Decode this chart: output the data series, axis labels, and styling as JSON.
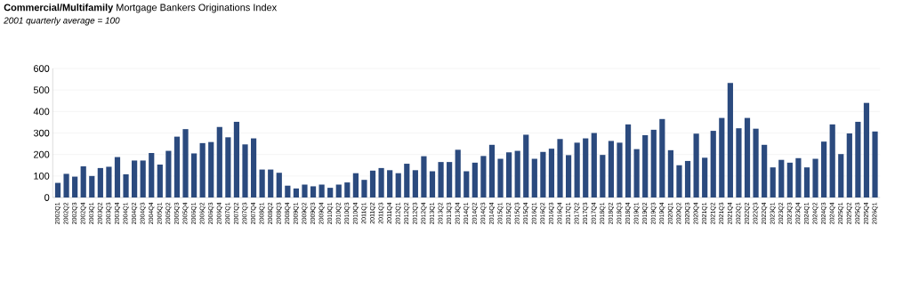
{
  "chart_data": {
    "type": "bar",
    "title": "**Commercial/Multifamily** Mortgage Bankers Originations Index",
    "subtitle": "2001 quarterly average = 100",
    "categories": [
      "2002Q1",
      "2002Q2",
      "2002Q3",
      "2002Q4",
      "2003Q1",
      "2003Q2",
      "2003Q3",
      "2003Q4",
      "2004Q1",
      "2004Q2",
      "2004Q3",
      "2004Q4",
      "2005Q1",
      "2005Q2",
      "2005Q3",
      "2005Q4",
      "2006Q1",
      "2006Q2",
      "2006Q3",
      "2006Q4",
      "2007Q1",
      "2007Q2",
      "2007Q3",
      "2007Q4",
      "2008Q1",
      "2008Q2",
      "2008Q3",
      "2008Q4",
      "2009Q1",
      "2009Q2",
      "2009Q3",
      "2009Q4",
      "2010Q1",
      "2010Q2",
      "2010Q3",
      "2010Q4",
      "2011Q1",
      "2011Q2",
      "2011Q3",
      "2011Q4",
      "2012Q1",
      "2012Q2",
      "2012Q3",
      "2012Q4",
      "2013Q1",
      "2013Q2",
      "2013Q3",
      "2013Q4",
      "2014Q1",
      "2014Q2",
      "2014Q3",
      "2014Q4",
      "2015Q1",
      "2015Q2",
      "2015Q3",
      "2015Q4",
      "2016Q1",
      "2016Q2",
      "2016Q3",
      "2016Q4",
      "2017Q1",
      "2017Q2",
      "2017Q3",
      "2017Q4",
      "2018Q1",
      "2018Q2",
      "2018Q3",
      "2018Q4",
      "2019Q1",
      "2019Q2",
      "2019Q3",
      "2019Q4",
      "2020Q1",
      "2020Q2",
      "2020Q3",
      "2020Q4",
      "2021Q1",
      "2021Q2",
      "2021Q3",
      "2021Q4",
      "2022Q1",
      "2022Q2",
      "2022Q3",
      "2022Q4",
      "2023Q1",
      "2023Q2",
      "2023Q3",
      "2023Q4",
      "2024Q1",
      "2024Q2",
      "2024Q3",
      "2024Q4",
      "2025Q1",
      "2025Q2",
      "2025Q3",
      "2025Q4",
      "2026Q1"
    ],
    "values": [
      68,
      110,
      97,
      145,
      100,
      137,
      143,
      188,
      108,
      172,
      172,
      207,
      153,
      217,
      283,
      318,
      205,
      253,
      258,
      328,
      280,
      352,
      247,
      275,
      130,
      130,
      115,
      55,
      42,
      60,
      52,
      60,
      45,
      60,
      70,
      113,
      82,
      125,
      137,
      127,
      113,
      157,
      127,
      192,
      122,
      165,
      165,
      222,
      122,
      162,
      193,
      245,
      180,
      210,
      217,
      292,
      180,
      212,
      227,
      272,
      197,
      255,
      275,
      300,
      198,
      263,
      255,
      340,
      225,
      290,
      315,
      365,
      220,
      150,
      170,
      297,
      185,
      310,
      370,
      533,
      322,
      370,
      320,
      245,
      140,
      175,
      162,
      183,
      140,
      180,
      260,
      340,
      202,
      298,
      352,
      440,
      307
    ],
    "color": "#2b4a7e",
    "ylim": [
      0,
      600
    ],
    "yticks": [
      0,
      100,
      200,
      300,
      400,
      500,
      600
    ],
    "grid": "y"
  }
}
